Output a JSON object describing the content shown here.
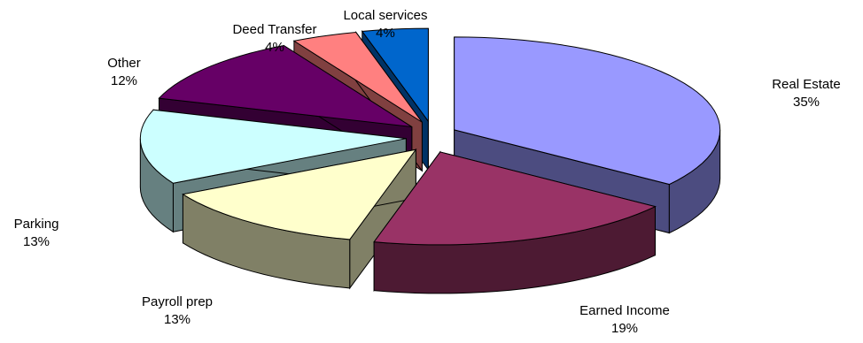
{
  "chart_data": {
    "type": "pie",
    "style": "3d-exploded",
    "legend": "none",
    "slices": [
      {
        "label": "Real Estate",
        "value_label": "35%",
        "value": 35,
        "top_color": "#9999ff",
        "side_color": "#4c4c80"
      },
      {
        "label": "Earned Income",
        "value_label": "19%",
        "value": 19,
        "top_color": "#993366",
        "side_color": "#4d1a33"
      },
      {
        "label": "Payroll prep",
        "value_label": "13%",
        "value": 13,
        "top_color": "#ffffcc",
        "side_color": "#808066"
      },
      {
        "label": "Parking",
        "value_label": "13%",
        "value": 13,
        "top_color": "#ccffff",
        "side_color": "#668080"
      },
      {
        "label": "Other",
        "value_label": "12%",
        "value": 12,
        "top_color": "#660066",
        "side_color": "#330033"
      },
      {
        "label": "Deed Transfer",
        "value_label": "4%",
        "value": 4,
        "top_color": "#ff8080",
        "side_color": "#804040"
      },
      {
        "label": "Local services",
        "value_label": "4%",
        "value": 4,
        "top_color": "#0066cc",
        "side_color": "#003366"
      }
    ]
  }
}
